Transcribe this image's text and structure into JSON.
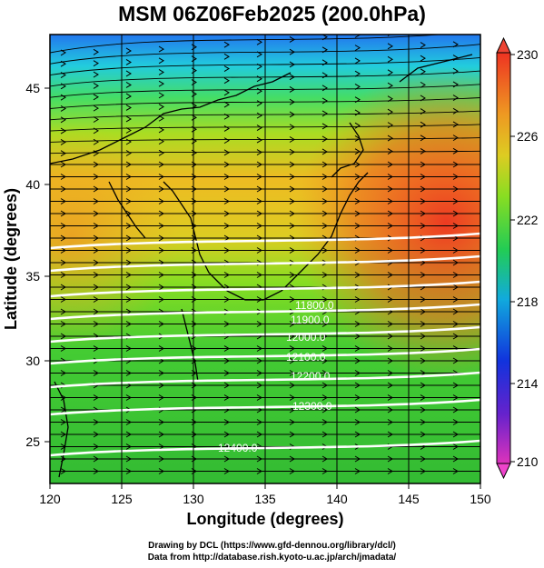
{
  "title": "MSM 06Z06Feb2025 (200.0hPa)",
  "x_axis": {
    "label": "Longitude (degrees)",
    "ticks": [
      "120",
      "125",
      "130",
      "135",
      "140",
      "145",
      "150"
    ]
  },
  "y_axis": {
    "label": "Latitude  (degrees)",
    "ticks": [
      "25",
      "30",
      "35",
      "40",
      "45"
    ]
  },
  "colorbar": {
    "ticks": [
      "210",
      "214",
      "218",
      "222",
      "226",
      "230"
    ],
    "colors": [
      "#cc33cc",
      "#2233dd",
      "#11bbdd",
      "#22cc44",
      "#ddcc22",
      "#ee3322"
    ]
  },
  "contour_labels": [
    "11800.0",
    "11900.0",
    "12000.0",
    "12100.0",
    "12200.0",
    "12300.0",
    "12400.0"
  ],
  "credits": {
    "line1": "Drawing by DCL (https://www.gfd-dennou.org/library/dcl/)",
    "line2": "Data from http://database.rish.kyoto-u.ac.jp/arch/jmadata/"
  }
}
